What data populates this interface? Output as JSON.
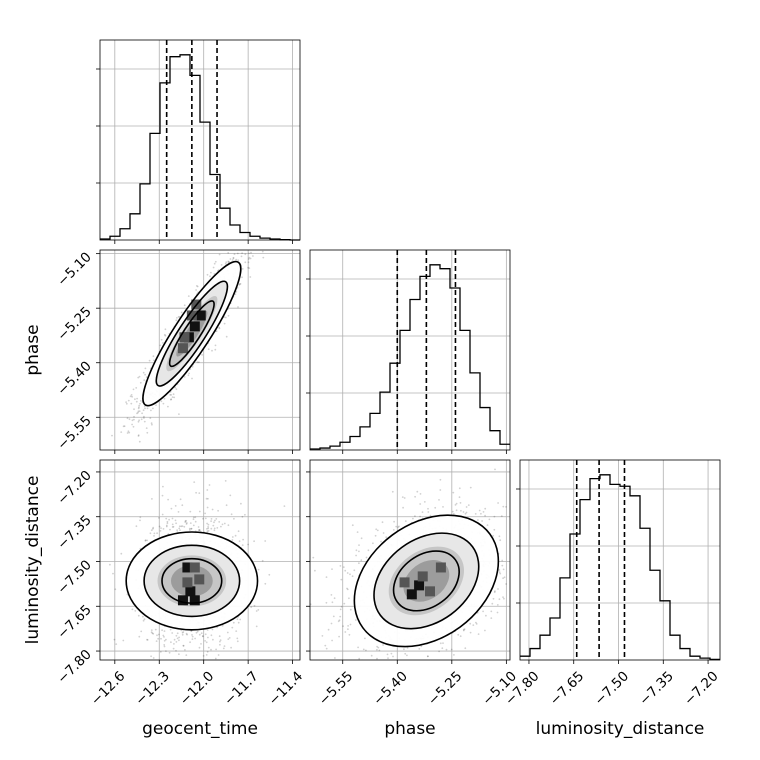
{
  "chart_data": {
    "type": "corner",
    "parameters": [
      {
        "name": "geocent_time",
        "xlabel": "geocent_time",
        "range": [
          -12.7,
          -11.35
        ],
        "ticks": [
          -12.6,
          -12.3,
          -12.0,
          -11.7,
          -11.4
        ],
        "tick_labels": [
          "−12.6",
          "−12.3",
          "−12.0",
          "−11.7",
          "−11.4"
        ],
        "quantiles": [
          -12.25,
          -12.08,
          -11.91
        ],
        "histogram": {
          "edges_start": -12.7,
          "bin_width": 0.0675,
          "counts": [
            0.5,
            2,
            6,
            14,
            30,
            57,
            84,
            98,
            99,
            88,
            63,
            35,
            17,
            8,
            4,
            2,
            1,
            0.5,
            0.2,
            0
          ]
        }
      },
      {
        "name": "phase",
        "xlabel": "phase",
        "ylabel": "phase",
        "range": [
          -5.64,
          -5.09
        ],
        "ticks": [
          -5.55,
          -5.4,
          -5.25,
          -5.1
        ],
        "tick_labels": [
          "−5.55",
          "−5.40",
          "−5.25",
          "−5.10"
        ],
        "quantiles": [
          -5.4,
          -5.32,
          -5.24
        ],
        "histogram": {
          "edges_start": -5.64,
          "bin_width": 0.0275,
          "counts": [
            0.5,
            1,
            2,
            4,
            7,
            12,
            19,
            30,
            45,
            62,
            78,
            90,
            96,
            94,
            84,
            62,
            40,
            22,
            10,
            3
          ]
        }
      },
      {
        "name": "luminosity_distance",
        "xlabel": "luminosity_distance",
        "ylabel": "luminosity_distance",
        "range": [
          -7.83,
          -7.16
        ],
        "ticks": [
          -7.8,
          -7.65,
          -7.5,
          -7.35,
          -7.2
        ],
        "tick_labels": [
          "−7.80",
          "−7.65",
          "−7.50",
          "−7.35",
          "−7.20"
        ],
        "quantiles": [
          -7.64,
          -7.565,
          -7.48
        ],
        "histogram": {
          "edges_start": -7.83,
          "bin_width": 0.0335,
          "counts": [
            2,
            6,
            13,
            22,
            43,
            66,
            84,
            95,
            97,
            92,
            91,
            86,
            69,
            47,
            31,
            13,
            6,
            2,
            1,
            0.3
          ]
        }
      }
    ],
    "pairs": [
      {
        "x": "geocent_time",
        "y": "phase",
        "mean": [
          -12.08,
          -5.32
        ],
        "std": [
          0.15,
          0.09
        ],
        "corr": 0.9,
        "density_cells": [
          [
            -12.05,
            -5.24,
            2
          ],
          [
            -12.02,
            -5.27,
            3
          ],
          [
            -12.06,
            -5.3,
            3
          ],
          [
            -12.1,
            -5.33,
            3
          ],
          [
            -12.13,
            -5.33,
            2
          ],
          [
            -12.14,
            -5.36,
            2
          ],
          [
            -12.08,
            -5.27,
            2
          ]
        ],
        "contour_levels": 3
      },
      {
        "x": "geocent_time",
        "y": "luminosity_distance",
        "mean": [
          -12.08,
          -7.565
        ],
        "std": [
          0.15,
          0.1
        ],
        "corr": 0.0,
        "density_cells": [
          [
            -12.11,
            -7.52,
            3
          ],
          [
            -12.06,
            -7.52,
            2
          ],
          [
            -12.03,
            -7.56,
            2
          ],
          [
            -12.09,
            -7.6,
            3
          ],
          [
            -12.06,
            -7.63,
            3
          ],
          [
            -12.14,
            -7.63,
            3
          ],
          [
            -12.11,
            -7.57,
            2
          ]
        ],
        "contour_levels": 3
      },
      {
        "x": "phase",
        "y": "luminosity_distance",
        "mean": [
          -5.32,
          -7.565
        ],
        "std": [
          0.09,
          0.1
        ],
        "corr": 0.3,
        "density_cells": [
          [
            -5.34,
            -7.58,
            3
          ],
          [
            -5.36,
            -7.61,
            3
          ],
          [
            -5.31,
            -7.6,
            2
          ],
          [
            -5.28,
            -7.52,
            2
          ],
          [
            -5.33,
            -7.55,
            2
          ],
          [
            -5.38,
            -7.57,
            2
          ]
        ],
        "contour_levels": 3
      }
    ]
  }
}
